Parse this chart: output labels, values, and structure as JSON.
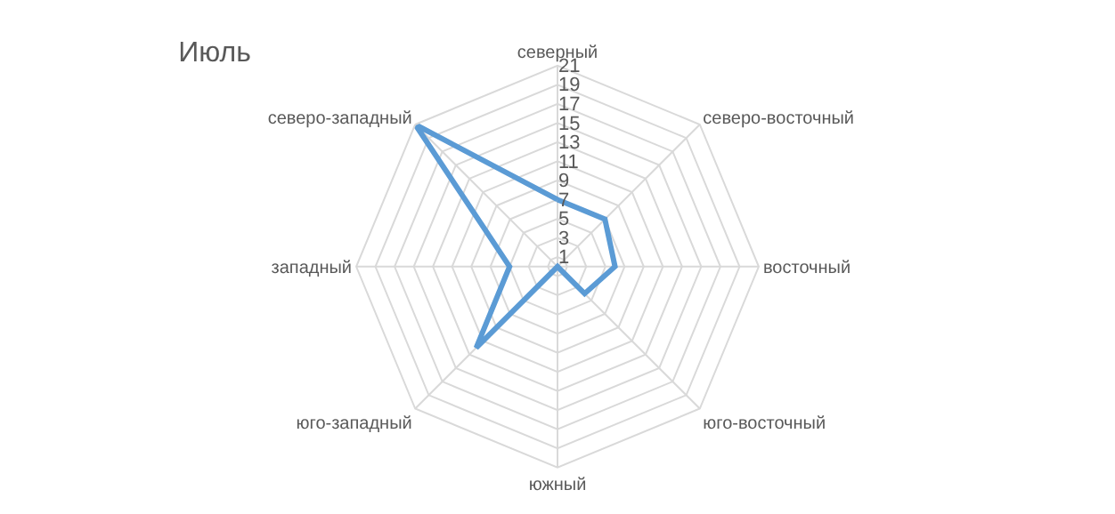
{
  "chart_data": {
    "type": "radar",
    "title": "Июль",
    "categories": [
      "северный",
      "северо-восточный",
      "восточный",
      "юго-восточный",
      "южный",
      "юго-западный",
      "западный",
      "северо-западный"
    ],
    "series": [
      {
        "color": "#5b9bd5",
        "values": [
          7,
          7,
          6,
          4,
          0,
          12,
          5,
          21
        ]
      }
    ],
    "ylim": [
      0,
      21
    ],
    "yticks": [
      1,
      3,
      5,
      7,
      9,
      11,
      13,
      15,
      17,
      19,
      21
    ],
    "grid": true,
    "marker": "none",
    "line_style": "solid"
  }
}
